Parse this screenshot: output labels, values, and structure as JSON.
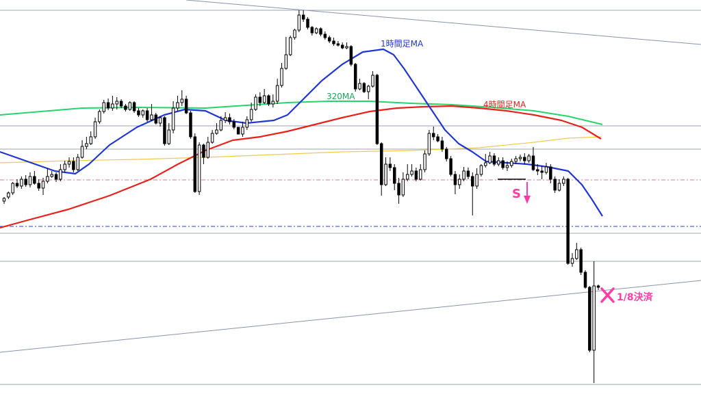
{
  "chart_data": {
    "type": "candlestick",
    "labels": {
      "ma_1h": "1時間足MA",
      "ma_4h": "4時間足MA",
      "ma_320": "320MA",
      "sell_signal": "S",
      "partial_close": "1/8決済"
    },
    "colors": {
      "ma_1h": "#1f35d6",
      "ma_4h": "#e8221a",
      "ma_320": "#25d46a",
      "ma_long": "#f2c94c",
      "signal": "#ff3ca6",
      "candle": "#000000",
      "level": "#9aa3b5",
      "pink_level": "#f06a9a",
      "blue_level": "#2238d8"
    },
    "candles": [
      [
        294,
        290,
        298,
        288
      ],
      [
        288,
        282,
        291,
        280
      ],
      [
        282,
        268,
        285,
        266
      ],
      [
        268,
        272,
        275,
        262
      ],
      [
        272,
        262,
        276,
        258
      ],
      [
        262,
        270,
        273,
        256
      ],
      [
        270,
        258,
        274,
        252
      ],
      [
        258,
        268,
        270,
        250
      ],
      [
        268,
        275,
        279,
        262
      ],
      [
        275,
        265,
        285,
        260
      ],
      [
        265,
        258,
        268,
        246
      ],
      [
        258,
        255,
        260,
        250
      ],
      [
        255,
        262,
        266,
        252
      ],
      [
        262,
        248,
        265,
        240
      ],
      [
        248,
        240,
        252,
        235
      ],
      [
        240,
        236,
        245,
        230
      ],
      [
        236,
        248,
        252,
        230
      ],
      [
        248,
        230,
        250,
        225
      ],
      [
        230,
        214,
        232,
        205
      ],
      [
        214,
        210,
        218,
        200
      ],
      [
        210,
        200,
        212,
        192
      ],
      [
        200,
        178,
        203,
        172
      ],
      [
        178,
        163,
        181,
        160
      ],
      [
        163,
        150,
        166,
        146
      ],
      [
        150,
        158,
        161,
        144
      ],
      [
        158,
        152,
        162,
        140
      ],
      [
        152,
        148,
        160,
        142
      ],
      [
        148,
        155,
        158,
        145
      ],
      [
        155,
        160,
        163,
        152
      ],
      [
        160,
        150,
        162,
        148
      ],
      [
        150,
        162,
        165,
        148
      ],
      [
        162,
        168,
        171,
        158
      ],
      [
        168,
        162,
        172,
        160
      ],
      [
        162,
        175,
        178,
        158
      ],
      [
        175,
        168,
        177,
        152
      ],
      [
        168,
        180,
        182,
        165
      ],
      [
        180,
        172,
        185,
        170
      ],
      [
        172,
        210,
        213,
        170
      ],
      [
        210,
        190,
        212,
        180
      ],
      [
        190,
        158,
        195,
        148
      ],
      [
        158,
        150,
        162,
        140
      ],
      [
        150,
        145,
        155,
        132
      ],
      [
        145,
        165,
        167,
        140
      ],
      [
        165,
        200,
        203,
        162
      ],
      [
        200,
        280,
        282,
        195
      ],
      [
        280,
        212,
        285,
        208
      ],
      [
        212,
        230,
        240,
        210
      ],
      [
        230,
        208,
        232,
        200
      ],
      [
        208,
        195,
        210,
        190
      ],
      [
        195,
        190,
        197,
        180
      ],
      [
        190,
        176,
        192,
        170
      ],
      [
        176,
        172,
        180,
        164
      ],
      [
        172,
        178,
        182,
        166
      ],
      [
        178,
        186,
        189,
        174
      ],
      [
        186,
        196,
        189,
        196
      ],
      [
        196,
        186,
        200,
        178
      ],
      [
        186,
        175,
        190,
        170
      ],
      [
        175,
        160,
        178,
        150
      ],
      [
        160,
        142,
        162,
        138
      ],
      [
        142,
        150,
        155,
        135
      ],
      [
        150,
        140,
        152,
        130
      ],
      [
        140,
        152,
        155,
        138
      ],
      [
        152,
        148,
        157,
        138
      ],
      [
        148,
        125,
        152,
        115
      ],
      [
        125,
        100,
        128,
        92
      ],
      [
        100,
        80,
        102,
        54
      ],
      [
        80,
        55,
        82,
        52
      ],
      [
        55,
        44,
        58,
        42
      ],
      [
        44,
        22,
        47,
        15
      ],
      [
        22,
        28,
        32,
        15
      ],
      [
        28,
        40,
        43,
        25
      ],
      [
        40,
        48,
        52,
        38
      ],
      [
        48,
        42,
        50,
        40
      ],
      [
        42,
        50,
        53,
        40
      ],
      [
        50,
        55,
        58,
        46
      ],
      [
        55,
        60,
        63,
        52
      ],
      [
        60,
        64,
        67,
        55
      ],
      [
        64,
        66,
        68,
        60
      ],
      [
        66,
        70,
        72,
        62
      ],
      [
        70,
        68,
        72,
        62
      ],
      [
        68,
        94,
        97,
        66
      ],
      [
        94,
        130,
        134,
        92
      ],
      [
        130,
        122,
        132,
        115
      ],
      [
        122,
        134,
        136,
        120
      ],
      [
        134,
        126,
        145,
        124
      ],
      [
        126,
        110,
        128,
        104
      ],
      [
        110,
        210,
        212,
        108
      ],
      [
        210,
        270,
        286,
        208
      ],
      [
        270,
        240,
        272,
        230
      ],
      [
        240,
        245,
        250,
        230
      ],
      [
        245,
        268,
        278,
        240
      ],
      [
        268,
        285,
        298,
        260
      ],
      [
        285,
        262,
        288,
        252
      ],
      [
        262,
        255,
        265,
        240
      ],
      [
        255,
        250,
        258,
        240
      ],
      [
        250,
        262,
        265,
        245
      ],
      [
        262,
        248,
        264,
        240
      ],
      [
        248,
        225,
        252,
        220
      ],
      [
        225,
        195,
        228,
        190
      ],
      [
        195,
        200,
        205,
        185
      ],
      [
        200,
        206,
        208,
        196
      ],
      [
        206,
        218,
        222,
        200
      ],
      [
        218,
        232,
        236,
        215
      ],
      [
        232,
        255,
        258,
        228
      ],
      [
        255,
        270,
        284,
        250
      ],
      [
        270,
        262,
        276,
        255
      ],
      [
        262,
        250,
        265,
        244
      ],
      [
        250,
        258,
        262,
        245
      ],
      [
        258,
        272,
        315,
        252
      ],
      [
        272,
        255,
        276,
        246
      ],
      [
        255,
        242,
        258,
        240
      ],
      [
        242,
        238,
        245,
        225
      ],
      [
        238,
        228,
        240,
        222
      ],
      [
        228,
        240,
        243,
        224
      ],
      [
        240,
        235,
        243,
        230
      ],
      [
        235,
        245,
        248,
        230
      ],
      [
        245,
        242,
        250,
        236
      ],
      [
        242,
        236,
        245,
        232
      ],
      [
        236,
        232,
        240,
        228
      ],
      [
        232,
        230,
        236,
        226
      ],
      [
        230,
        235,
        240,
        224
      ],
      [
        235,
        228,
        238,
        225
      ],
      [
        228,
        248,
        250,
        215
      ],
      [
        248,
        250,
        256,
        240
      ],
      [
        250,
        252,
        262,
        242
      ],
      [
        252,
        244,
        255,
        238
      ],
      [
        244,
        262,
        268,
        240
      ],
      [
        262,
        278,
        282,
        258
      ],
      [
        278,
        268,
        280,
        262
      ],
      [
        268,
        262,
        272,
        258
      ],
      [
        262,
        385,
        387,
        260
      ],
      [
        385,
        378,
        390,
        370
      ],
      [
        378,
        365,
        380,
        355
      ],
      [
        365,
        398,
        402,
        362
      ],
      [
        398,
        420,
        422,
        395
      ],
      [
        420,
        512,
        515,
        418
      ],
      [
        512,
        418,
        560,
        382
      ],
      [
        418,
        420,
        424,
        416
      ]
    ]
  }
}
